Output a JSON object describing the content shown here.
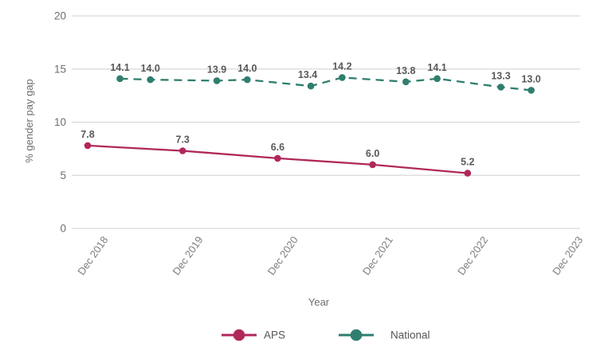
{
  "chart_data": {
    "type": "line",
    "title": "",
    "xlabel": "Year",
    "ylabel": "% gender pay gap",
    "ylim": [
      0,
      20
    ],
    "xlim": [
      2018.752,
      2024.105
    ],
    "y_ticks": [
      "0",
      "5",
      "10",
      "15",
      "20"
    ],
    "x_ticks": [
      {
        "label": "Dec 2018",
        "x": 2018.92
      },
      {
        "label": "Dec 2019",
        "x": 2019.92
      },
      {
        "label": "Dec 2020",
        "x": 2020.92
      },
      {
        "label": "Dec 2021",
        "x": 2021.92
      },
      {
        "label": "Dec 2022",
        "x": 2022.92
      },
      {
        "label": "Dec 2023",
        "x": 2023.92
      }
    ],
    "grid": "horizontal",
    "legend_position": "bottom",
    "series": [
      {
        "name": "APS",
        "color": "#B0285A",
        "line_style": "solid",
        "points": [
          {
            "x": 2018.92,
            "y": 7.8,
            "label": "7.8"
          },
          {
            "x": 2019.92,
            "y": 7.3,
            "label": "7.3"
          },
          {
            "x": 2020.92,
            "y": 6.6,
            "label": "6.6"
          },
          {
            "x": 2021.92,
            "y": 6.0,
            "label": "6.0"
          },
          {
            "x": 2022.92,
            "y": 5.2,
            "label": "5.2"
          }
        ]
      },
      {
        "name": "National",
        "color": "#2F7E6E",
        "line_style": "dashed",
        "points": [
          {
            "x": 2019.26,
            "y": 14.1,
            "label": "14.1"
          },
          {
            "x": 2019.58,
            "y": 14.0,
            "label": "14.0"
          },
          {
            "x": 2020.28,
            "y": 13.9,
            "label": "13.9"
          },
          {
            "x": 2020.6,
            "y": 14.0,
            "label": "14.0"
          },
          {
            "x": 2021.27,
            "y": 13.4,
            "label": "13.4",
            "label_dx": -4
          },
          {
            "x": 2021.6,
            "y": 14.2,
            "label": "14.2"
          },
          {
            "x": 2022.27,
            "y": 13.8,
            "label": "13.8"
          },
          {
            "x": 2022.6,
            "y": 14.1,
            "label": "14.1"
          },
          {
            "x": 2023.27,
            "y": 13.3,
            "label": "13.3"
          },
          {
            "x": 2023.59,
            "y": 13.0,
            "label": "13.0"
          }
        ]
      }
    ]
  }
}
